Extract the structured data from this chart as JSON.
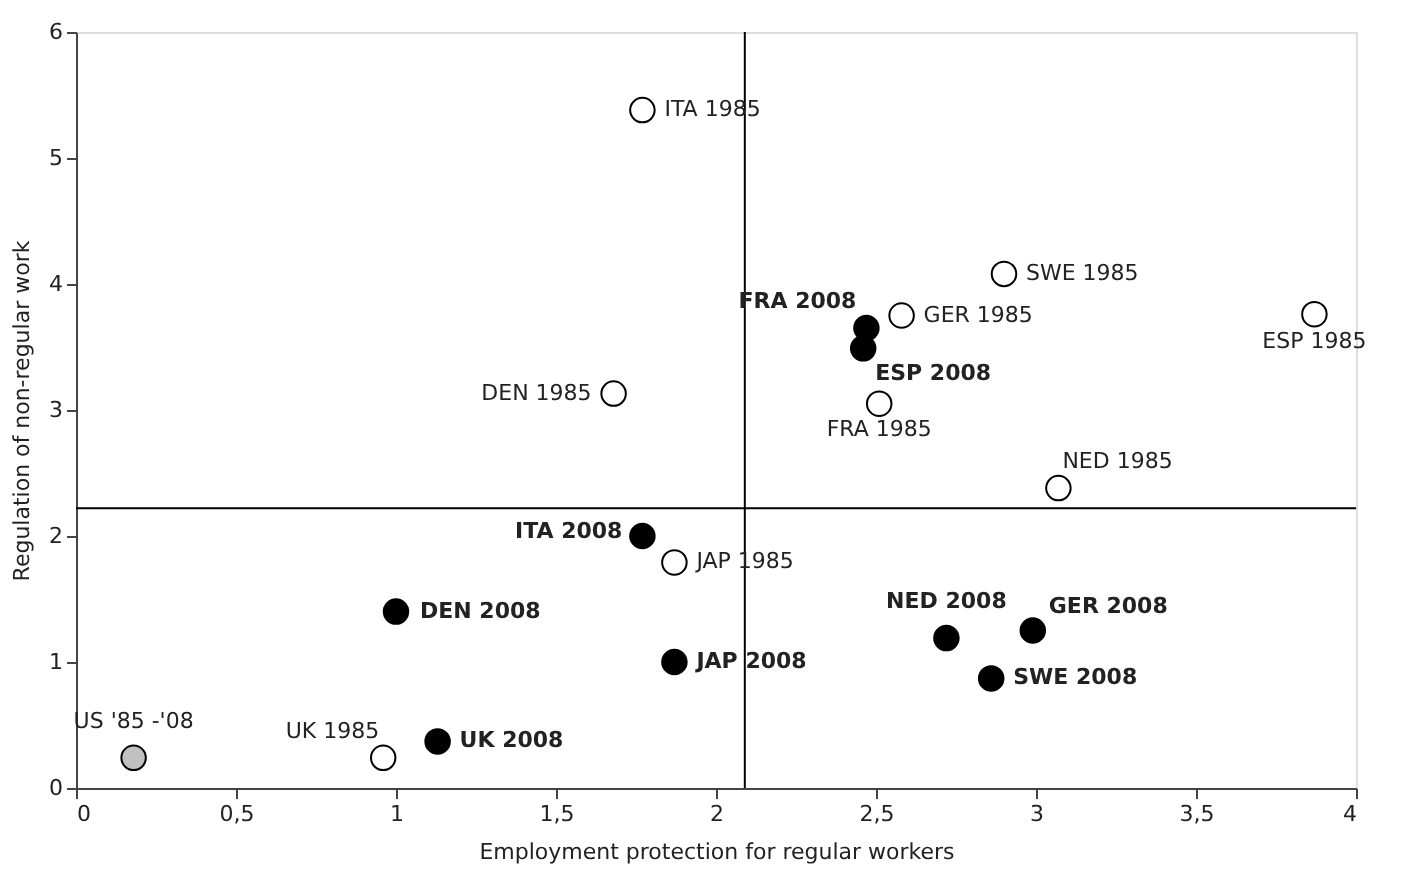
{
  "chart_data": {
    "type": "scatter",
    "xlabel": "Employment protection for regular workers",
    "ylabel": "Regulation of non-regular work",
    "xlim": [
      0,
      4
    ],
    "xticks": [
      0,
      {
        "value": 0.5,
        "label": "0,5"
      },
      1,
      {
        "value": 1.5,
        "label": "1,5"
      },
      2,
      {
        "value": 2.5,
        "label": "2,5"
      },
      3,
      {
        "value": 3.5,
        "label": "3,5"
      },
      4
    ],
    "ylim": [
      0,
      6
    ],
    "yticks": [
      0,
      1,
      2,
      3,
      4,
      5,
      6
    ],
    "grid": false,
    "marker": "circle",
    "ref_lines": [
      {
        "axis": "x",
        "value": 2.09
      },
      {
        "axis": "y",
        "value": 2.22
      }
    ],
    "series": [
      {
        "color": "#ffffff",
        "x": [
          1.77,
          1.68,
          2.9,
          2.58,
          2.51,
          3.87,
          3.07,
          1.87,
          0.96
        ],
        "values": [
          5.38,
          3.13,
          4.08,
          3.75,
          3.05,
          3.76,
          2.38,
          1.79,
          0.24
        ],
        "value_labels": [
          "ITA 1985",
          "DEN  1985",
          "SWE 1985",
          "GER 1985",
          "FRA 1985",
          "ESP 1985",
          "NED 1985",
          "JAP 1985",
          "UK 1985"
        ]
      },
      {
        "color": "#000000",
        "x": [
          2.47,
          2.46,
          1.77,
          1.0,
          1.87,
          2.72,
          2.99,
          2.86,
          1.13
        ],
        "values": [
          3.65,
          3.49,
          2.0,
          1.4,
          1.0,
          1.19,
          1.25,
          0.87,
          0.37
        ],
        "value_labels": [
          "FRA 2008",
          "ESP 2008",
          "ITA 2008",
          "DEN  2008",
          "JAP 2008",
          "NED 2008",
          "GER 2008",
          "SWE 2008",
          "UK 2008"
        ]
      },
      {
        "color": "#c0c0c0",
        "x": [
          0.18
        ],
        "values": [
          0.24
        ],
        "value_labels": [
          "US '85 -'08"
        ]
      }
    ]
  }
}
